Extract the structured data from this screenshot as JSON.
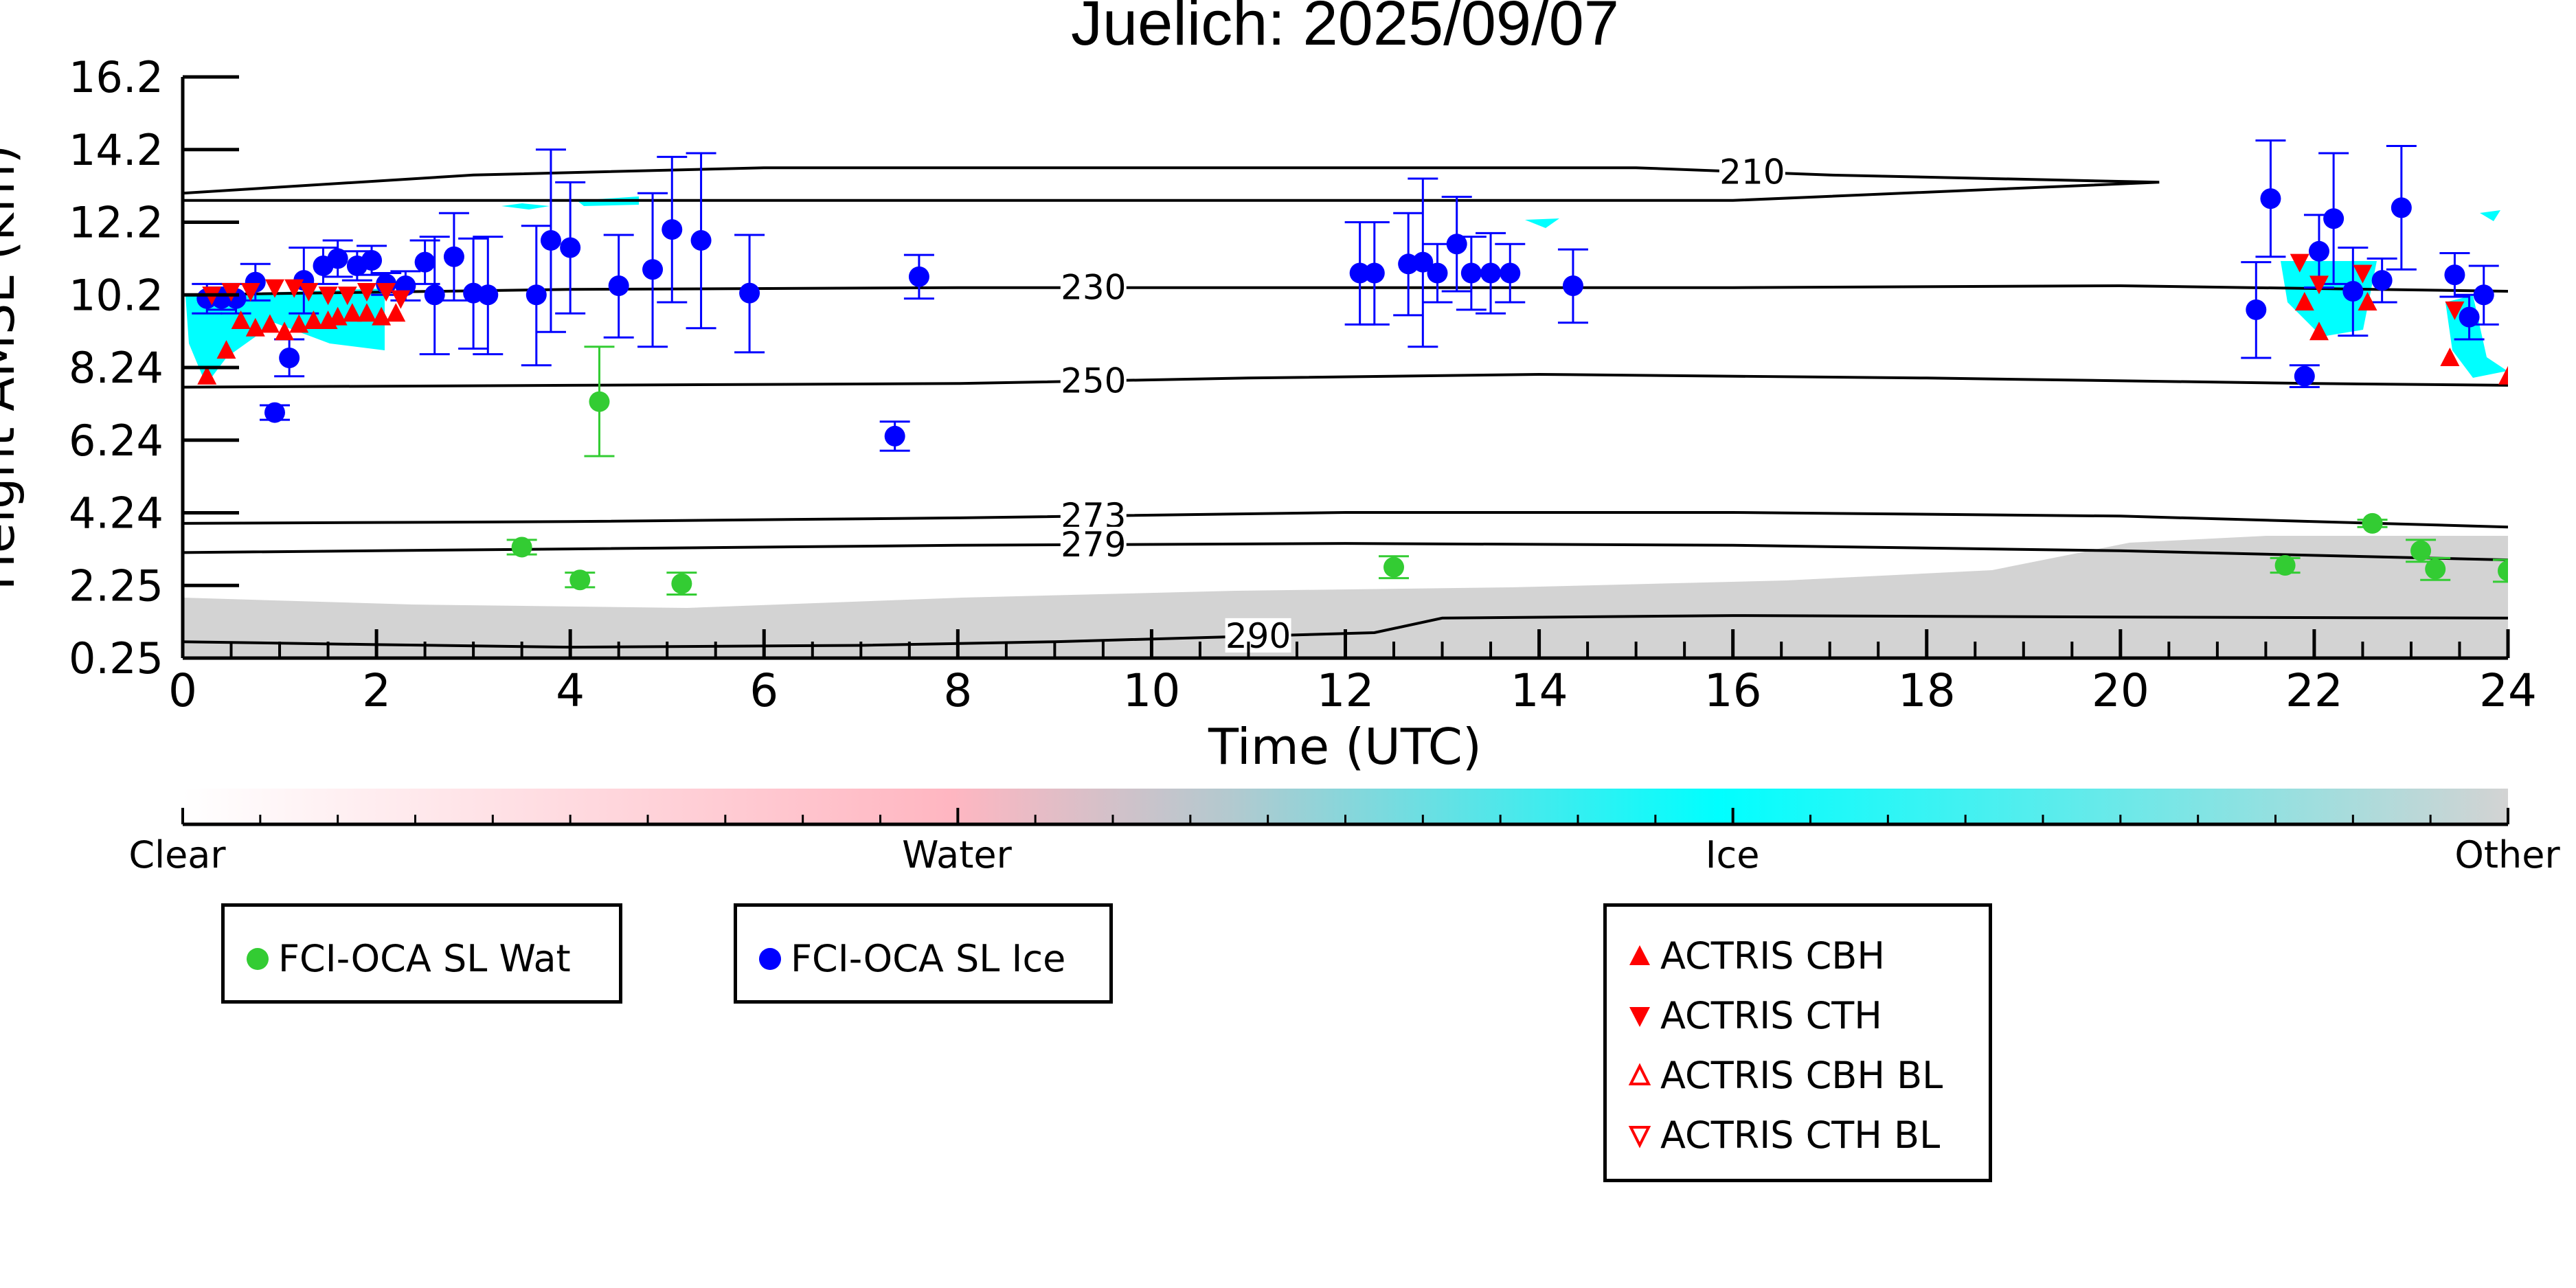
{
  "chart_data": {
    "type": "scatter",
    "title": "Juelich: 2025/09/07",
    "xlabel": "Time (UTC)",
    "ylabel": "Height AMSL (km)",
    "xlim": [
      0,
      24
    ],
    "ylim": [
      0.25,
      16.2
    ],
    "x_ticks": [
      0,
      2,
      4,
      6,
      8,
      10,
      12,
      14,
      16,
      18,
      20,
      22,
      24
    ],
    "y_ticks": [
      "0.25",
      "2.25",
      "4.24",
      "6.24",
      "8.24",
      "10.2",
      "12.2",
      "14.2",
      "16.2"
    ],
    "y_tick_values": [
      0.25,
      2.25,
      4.24,
      6.24,
      8.24,
      10.2,
      12.2,
      14.2,
      16.2
    ],
    "temperature_contours": [
      {
        "label": "210",
        "label_x": 16.2,
        "points": [
          [
            0,
            13.0
          ],
          [
            3,
            13.5
          ],
          [
            6,
            13.7
          ],
          [
            9,
            13.7
          ],
          [
            12,
            13.7
          ],
          [
            15,
            13.7
          ],
          [
            17,
            13.5
          ],
          [
            20.4,
            13.3
          ],
          [
            16,
            12.8
          ],
          [
            12,
            12.8
          ],
          [
            8,
            12.8
          ],
          [
            4,
            12.8
          ],
          [
            0,
            12.8
          ]
        ]
      },
      {
        "label": "230",
        "label_x": 9.4,
        "points": [
          [
            0,
            10.2
          ],
          [
            4,
            10.35
          ],
          [
            8,
            10.4
          ],
          [
            12,
            10.4
          ],
          [
            16,
            10.4
          ],
          [
            20,
            10.45
          ],
          [
            24,
            10.3
          ]
        ]
      },
      {
        "label": "250",
        "label_x": 9.4,
        "points": [
          [
            0,
            7.7
          ],
          [
            4,
            7.75
          ],
          [
            8,
            7.8
          ],
          [
            11,
            7.95
          ],
          [
            14,
            8.05
          ],
          [
            18,
            7.95
          ],
          [
            22,
            7.8
          ],
          [
            24,
            7.75
          ]
        ]
      },
      {
        "label": "273",
        "label_x": 9.4,
        "points": [
          [
            0,
            3.95
          ],
          [
            4,
            4.0
          ],
          [
            8,
            4.1
          ],
          [
            12,
            4.25
          ],
          [
            16,
            4.25
          ],
          [
            20,
            4.15
          ],
          [
            24,
            3.85
          ]
        ]
      },
      {
        "label": "279",
        "label_x": 9.4,
        "points": [
          [
            0,
            3.15
          ],
          [
            4,
            3.25
          ],
          [
            8,
            3.35
          ],
          [
            12,
            3.4
          ],
          [
            16,
            3.35
          ],
          [
            20,
            3.2
          ],
          [
            24,
            2.95
          ]
        ]
      },
      {
        "label": "290",
        "label_x": 11.1,
        "points": [
          [
            0,
            0.7
          ],
          [
            2,
            0.62
          ],
          [
            4,
            0.55
          ],
          [
            7,
            0.6
          ],
          [
            9,
            0.7
          ],
          [
            11,
            0.85
          ],
          [
            12.3,
            0.95
          ],
          [
            13,
            1.35
          ],
          [
            16,
            1.42
          ],
          [
            20,
            1.38
          ],
          [
            24,
            1.35
          ]
        ]
      }
    ],
    "classification_colorbar": {
      "labels": [
        "Clear",
        "Water",
        "Ice",
        "Other"
      ],
      "colors": [
        "#ffffff",
        "#ffb6c1",
        "#00ffff",
        "#d3d3d3"
      ]
    },
    "series": [
      {
        "name": "FCI-OCA SL Wat",
        "color": "#33cc33",
        "marker": "circle",
        "points": [
          {
            "x": 3.5,
            "y": 3.3,
            "err": 0.2
          },
          {
            "x": 4.1,
            "y": 2.4,
            "err": 0.2
          },
          {
            "x": 4.3,
            "y": 7.3,
            "err": 1.5
          },
          {
            "x": 5.15,
            "y": 2.3,
            "err": 0.3
          },
          {
            "x": 12.5,
            "y": 2.75,
            "err": 0.3
          },
          {
            "x": 21.7,
            "y": 2.8,
            "err": 0.2
          },
          {
            "x": 22.6,
            "y": 3.95,
            "err": 0.1
          },
          {
            "x": 23.1,
            "y": 3.2,
            "err": 0.3
          },
          {
            "x": 23.25,
            "y": 2.7,
            "err": 0.3
          },
          {
            "x": 24.0,
            "y": 2.65,
            "err": 0.3
          }
        ]
      },
      {
        "name": "FCI-OCA SL Ice",
        "color": "#0000ff",
        "marker": "circle",
        "points": [
          {
            "x": 0.25,
            "y": 10.1,
            "err": 0.4
          },
          {
            "x": 0.4,
            "y": 10.1,
            "err": 0.3
          },
          {
            "x": 0.55,
            "y": 10.1,
            "err": 0.4
          },
          {
            "x": 0.75,
            "y": 10.55,
            "err": 0.5
          },
          {
            "x": 0.95,
            "y": 7.0,
            "err": 0.2
          },
          {
            "x": 1.1,
            "y": 8.5,
            "err": 0.5
          },
          {
            "x": 1.25,
            "y": 10.6,
            "err": 0.9
          },
          {
            "x": 1.45,
            "y": 11.0,
            "err": 0.5
          },
          {
            "x": 1.6,
            "y": 11.2,
            "err": 0.5
          },
          {
            "x": 1.8,
            "y": 11.0,
            "err": 0.4
          },
          {
            "x": 1.95,
            "y": 11.15,
            "err": 0.4
          },
          {
            "x": 2.1,
            "y": 10.5,
            "err": 0.3
          },
          {
            "x": 2.3,
            "y": 10.45,
            "err": 0.4
          },
          {
            "x": 2.5,
            "y": 11.1,
            "err": 0.6
          },
          {
            "x": 2.6,
            "y": 10.2,
            "err": 1.6
          },
          {
            "x": 2.8,
            "y": 11.25,
            "err": 1.2
          },
          {
            "x": 3.0,
            "y": 10.25,
            "err": 1.5
          },
          {
            "x": 3.15,
            "y": 10.2,
            "err": 1.6
          },
          {
            "x": 3.65,
            "y": 10.2,
            "err": 1.9
          },
          {
            "x": 3.8,
            "y": 11.7,
            "err": 2.5
          },
          {
            "x": 4.0,
            "y": 11.5,
            "err": 1.8
          },
          {
            "x": 4.5,
            "y": 10.45,
            "err": 1.4
          },
          {
            "x": 4.85,
            "y": 10.9,
            "err": 2.1
          },
          {
            "x": 5.05,
            "y": 12.0,
            "err": 2.0
          },
          {
            "x": 5.35,
            "y": 11.7,
            "err": 2.4
          },
          {
            "x": 5.85,
            "y": 10.25,
            "err": 1.6
          },
          {
            "x": 7.35,
            "y": 6.35,
            "err": 0.4
          },
          {
            "x": 7.6,
            "y": 10.7,
            "err": 0.6
          },
          {
            "x": 12.15,
            "y": 10.8,
            "err": 1.4
          },
          {
            "x": 12.3,
            "y": 10.8,
            "err": 1.4
          },
          {
            "x": 12.65,
            "y": 11.05,
            "err": 1.4
          },
          {
            "x": 12.8,
            "y": 11.1,
            "err": 2.3
          },
          {
            "x": 12.95,
            "y": 10.8,
            "err": 0.8
          },
          {
            "x": 13.15,
            "y": 11.6,
            "err": 1.3
          },
          {
            "x": 13.3,
            "y": 10.8,
            "err": 1.0
          },
          {
            "x": 13.5,
            "y": 10.8,
            "err": 1.1
          },
          {
            "x": 13.7,
            "y": 10.8,
            "err": 0.8
          },
          {
            "x": 14.35,
            "y": 10.45,
            "err": 1.0
          },
          {
            "x": 21.4,
            "y": 9.8,
            "err": 1.3
          },
          {
            "x": 21.55,
            "y": 12.85,
            "err": 1.6
          },
          {
            "x": 21.9,
            "y": 8.0,
            "err": 0.3
          },
          {
            "x": 22.05,
            "y": 11.4,
            "err": 1.0
          },
          {
            "x": 22.2,
            "y": 12.3,
            "err": 1.8
          },
          {
            "x": 22.4,
            "y": 10.3,
            "err": 1.2
          },
          {
            "x": 22.7,
            "y": 10.6,
            "err": 0.6
          },
          {
            "x": 22.9,
            "y": 12.6,
            "err": 1.7
          },
          {
            "x": 23.45,
            "y": 10.75,
            "err": 0.6
          },
          {
            "x": 23.6,
            "y": 9.6,
            "err": 0.6
          },
          {
            "x": 23.75,
            "y": 10.2,
            "err": 0.8
          }
        ]
      },
      {
        "name": "ACTRIS CBH",
        "color": "#ff0000",
        "marker": "triangle-up",
        "points": [
          {
            "x": 0.25,
            "y": 8.0
          },
          {
            "x": 0.45,
            "y": 8.7
          },
          {
            "x": 0.6,
            "y": 9.5
          },
          {
            "x": 0.75,
            "y": 9.3
          },
          {
            "x": 0.9,
            "y": 9.4
          },
          {
            "x": 1.05,
            "y": 9.2
          },
          {
            "x": 1.2,
            "y": 9.4
          },
          {
            "x": 1.35,
            "y": 9.5
          },
          {
            "x": 1.5,
            "y": 9.5
          },
          {
            "x": 1.6,
            "y": 9.6
          },
          {
            "x": 1.75,
            "y": 9.7
          },
          {
            "x": 1.9,
            "y": 9.7
          },
          {
            "x": 2.05,
            "y": 9.6
          },
          {
            "x": 2.2,
            "y": 9.7
          },
          {
            "x": 21.9,
            "y": 10.0
          },
          {
            "x": 22.05,
            "y": 9.2
          },
          {
            "x": 22.55,
            "y": 10.0
          },
          {
            "x": 23.4,
            "y": 8.5
          },
          {
            "x": 24.0,
            "y": 8.0
          }
        ]
      },
      {
        "name": "ACTRIS CTH",
        "color": "#ff0000",
        "marker": "triangle-down",
        "points": [
          {
            "x": 0.3,
            "y": 10.2
          },
          {
            "x": 0.5,
            "y": 10.3
          },
          {
            "x": 0.7,
            "y": 10.3
          },
          {
            "x": 0.95,
            "y": 10.4
          },
          {
            "x": 1.15,
            "y": 10.4
          },
          {
            "x": 1.3,
            "y": 10.3
          },
          {
            "x": 1.5,
            "y": 10.2
          },
          {
            "x": 1.7,
            "y": 10.2
          },
          {
            "x": 1.9,
            "y": 10.3
          },
          {
            "x": 2.1,
            "y": 10.3
          },
          {
            "x": 2.25,
            "y": 10.1
          },
          {
            "x": 21.85,
            "y": 11.1
          },
          {
            "x": 22.05,
            "y": 10.5
          },
          {
            "x": 22.5,
            "y": 10.8
          },
          {
            "x": 23.45,
            "y": 9.8
          }
        ]
      },
      {
        "name": "ACTRIS CBH BL",
        "color": "#ff0000",
        "marker": "triangle-up-open",
        "points": []
      },
      {
        "name": "ACTRIS CTH BL",
        "color": "#ff0000",
        "marker": "triangle-down-open",
        "points": []
      }
    ]
  }
}
